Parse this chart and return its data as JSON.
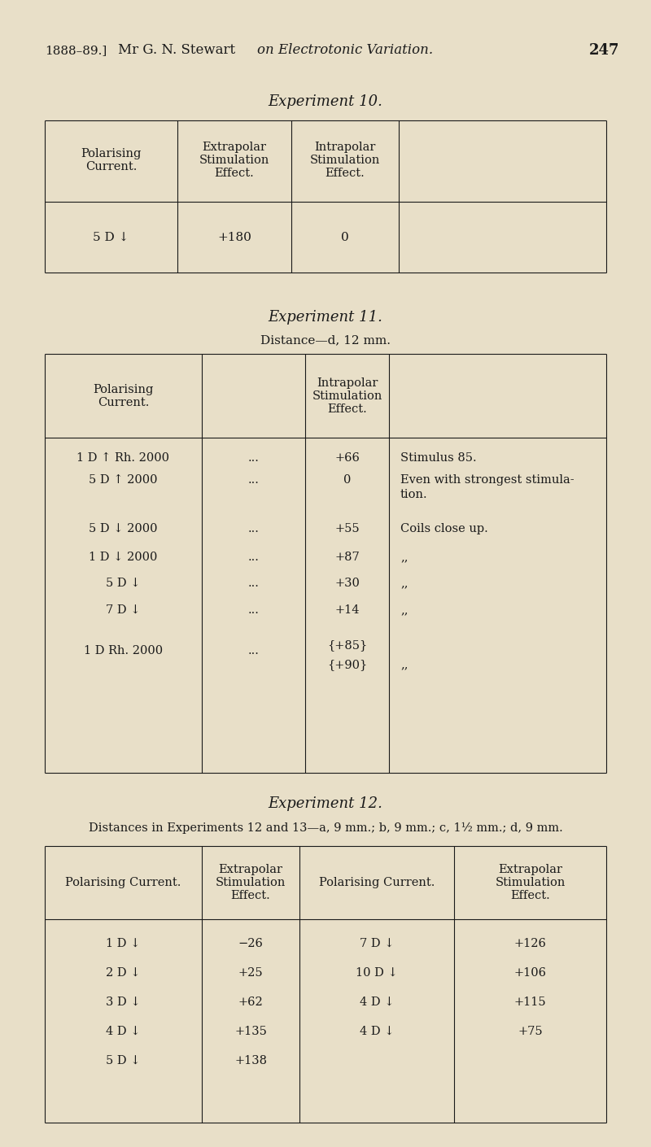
{
  "bg_color": "#e8dfc8",
  "text_color": "#1a1a1a",
  "header_left": "1888–89.]",
  "header_name": "Mr G. N. Stewart",
  "header_italic": "on Electrotonic Variation.",
  "header_page": "247",
  "exp10_title": "Experiment 10.",
  "exp11_title": "Experiment 11.",
  "exp11_subtitle": "Distance—d, 12 mm.",
  "exp12_title": "Experiment 12.",
  "exp12_subtitle": "Distances in Experiments 12 and 13—a, 9 mm.; b, 9 mm.; c, 1½ mm.; d, 9 mm.",
  "comma_pair": ",,"
}
